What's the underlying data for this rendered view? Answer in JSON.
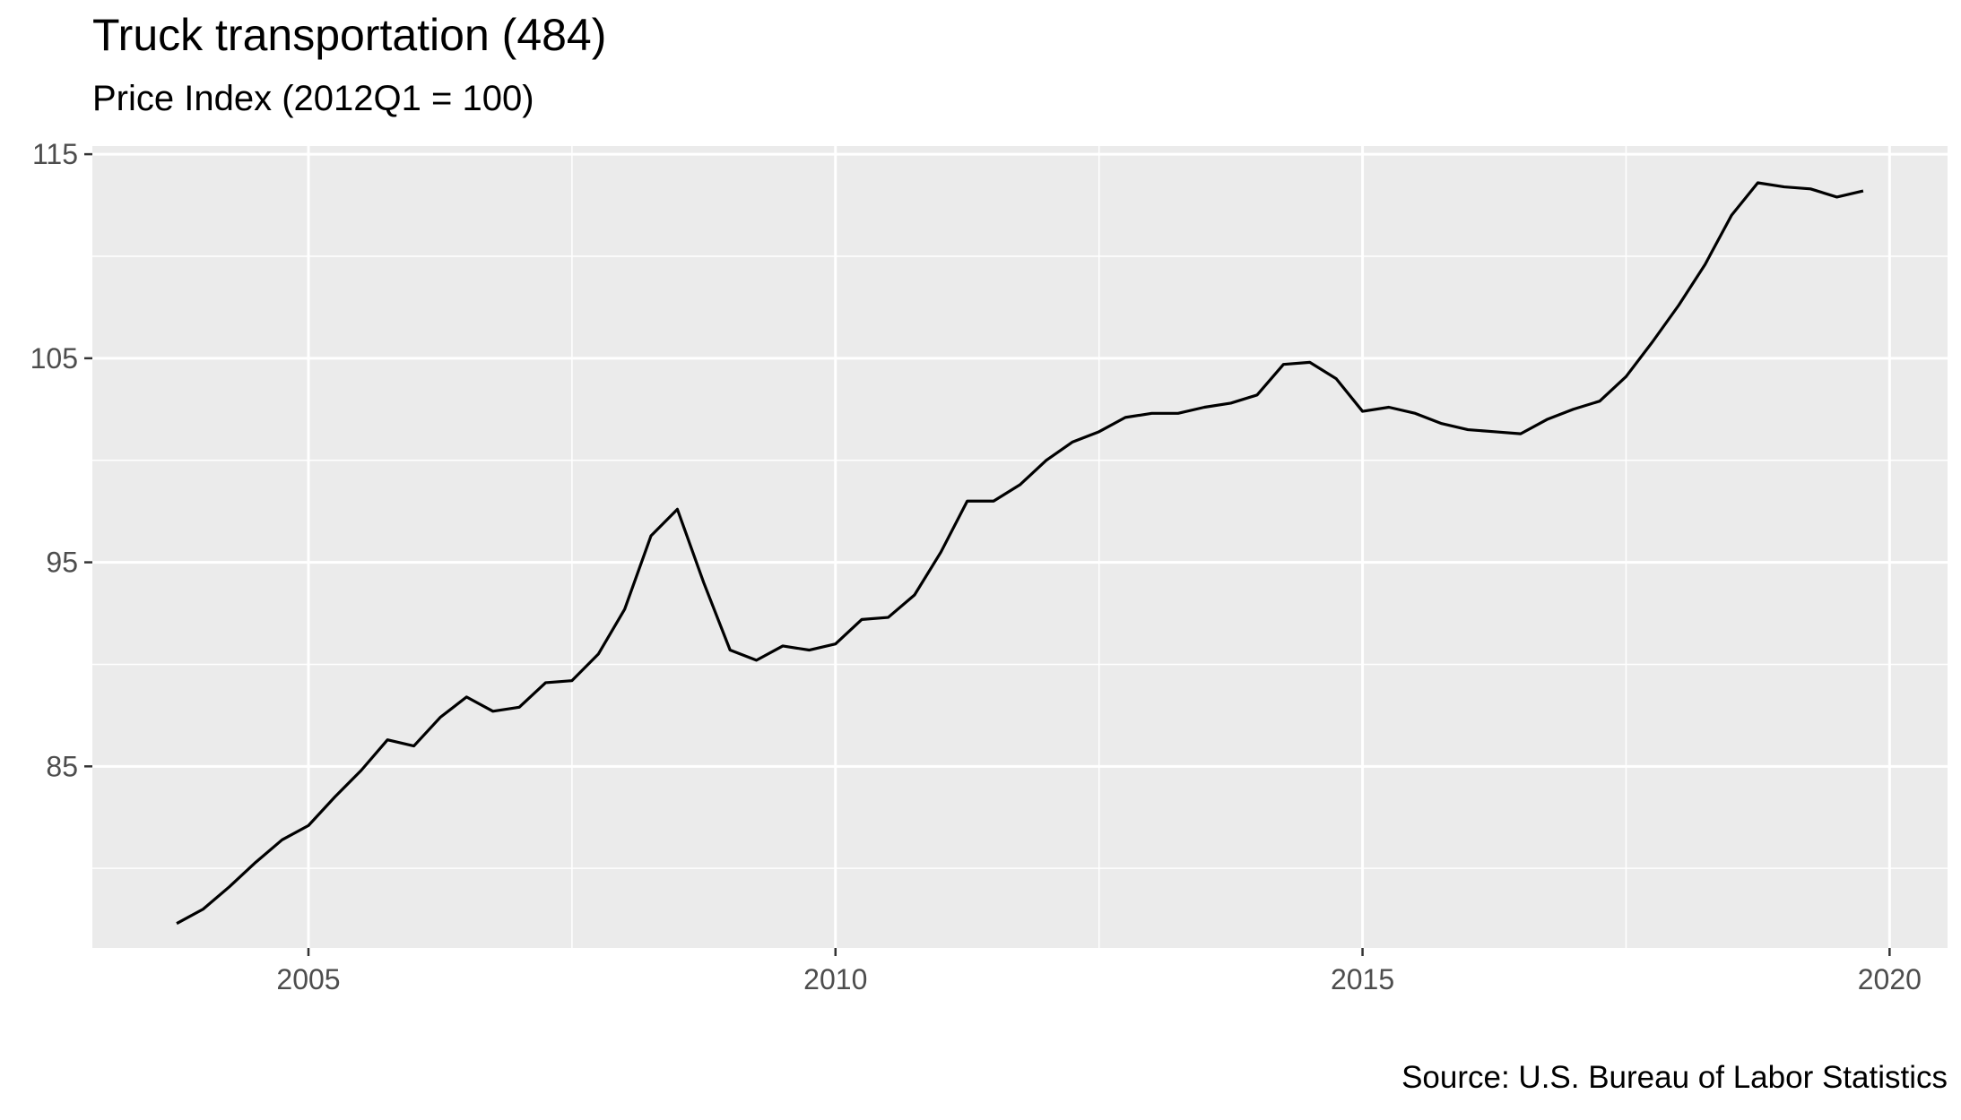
{
  "chart_data": {
    "type": "line",
    "title": "Truck transportation (484)",
    "subtitle": "Price Index (2012Q1 = 100)",
    "caption": "Source: U.S. Bureau of Labor Statistics",
    "xlabel": "",
    "ylabel": "",
    "xlim": [
      2002.95,
      2020.55
    ],
    "ylim": [
      76.1,
      115.4
    ],
    "x_ticks": [
      2005,
      2010,
      2015,
      2020
    ],
    "y_ticks": [
      85,
      95,
      105,
      115
    ],
    "grid": true,
    "series": [
      {
        "color": "#000000",
        "x": [
          2003.75,
          2004.0,
          2004.25,
          2004.5,
          2004.75,
          2005.0,
          2005.25,
          2005.5,
          2005.75,
          2006.0,
          2006.25,
          2006.5,
          2006.75,
          2007.0,
          2007.25,
          2007.5,
          2007.75,
          2008.0,
          2008.25,
          2008.5,
          2008.75,
          2009.0,
          2009.25,
          2009.5,
          2009.75,
          2010.0,
          2010.25,
          2010.5,
          2010.75,
          2011.0,
          2011.25,
          2011.5,
          2011.75,
          2012.0,
          2012.25,
          2012.5,
          2012.75,
          2013.0,
          2013.25,
          2013.5,
          2013.75,
          2014.0,
          2014.25,
          2014.5,
          2014.75,
          2015.0,
          2015.25,
          2015.5,
          2015.75,
          2016.0,
          2016.25,
          2016.5,
          2016.75,
          2017.0,
          2017.25,
          2017.5,
          2017.75,
          2018.0,
          2018.25,
          2018.5,
          2018.75,
          2019.0,
          2019.25,
          2019.5,
          2019.75
        ],
        "y": [
          77.3,
          78.0,
          79.1,
          80.3,
          81.4,
          82.1,
          83.5,
          84.8,
          86.3,
          86.0,
          87.4,
          88.4,
          87.7,
          87.9,
          89.1,
          89.2,
          90.5,
          92.7,
          96.3,
          97.6,
          94.0,
          90.7,
          90.2,
          90.9,
          90.7,
          91.0,
          92.2,
          92.3,
          93.4,
          95.5,
          98.0,
          98.0,
          98.8,
          100.0,
          100.9,
          101.4,
          102.1,
          102.3,
          102.3,
          102.6,
          102.8,
          103.2,
          104.7,
          104.8,
          104.0,
          102.4,
          102.6,
          102.3,
          101.8,
          101.5,
          101.4,
          101.3,
          102.0,
          102.5,
          102.9,
          104.1,
          105.8,
          107.6,
          109.6,
          112.0,
          113.6,
          113.4,
          113.3,
          112.9,
          113.2
        ]
      }
    ]
  }
}
